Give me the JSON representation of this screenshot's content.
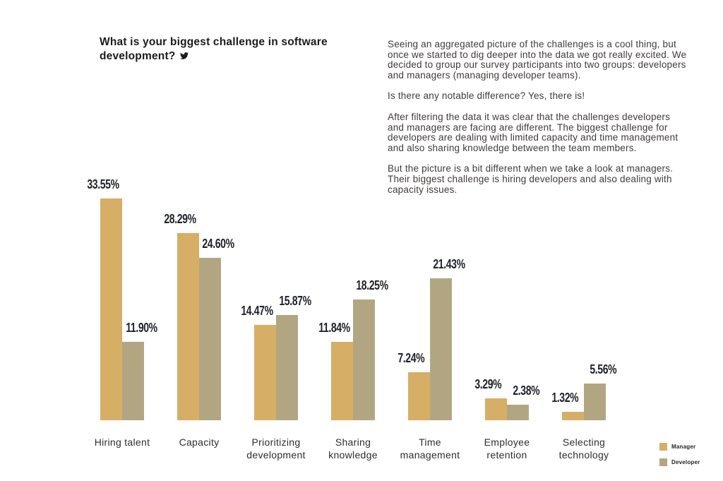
{
  "header": {
    "title": "What is your biggest challenge in software development?",
    "icon": "twitter-icon"
  },
  "article": {
    "paragraphs": [
      "Seeing an aggregated picture of the challenges is a cool thing, but once we started to dig deeper into the data we got really excited. We decided to group our survey participants into two groups: developers and managers (managing developer teams).",
      "Is there any notable difference? Yes, there is!",
      "After filtering the data it was clear that the challenges developers and managers are facing are different. The biggest challenge for developers are dealing with limited capacity and time management and also sharing knowledge between the team members.",
      "But the picture is a bit different when we take a look at managers. Their biggest challenge is hiring developers and also dealing with capacity issues."
    ]
  },
  "chart_data": {
    "type": "bar",
    "title": "What is your biggest challenge in software development?",
    "categories": [
      "Hiring talent",
      "Capacity",
      "Prioritizing development",
      "Sharing knowledge",
      "Time management",
      "Employee retention",
      "Selecting technology"
    ],
    "series": [
      {
        "name": "Manager",
        "color": "#D6AE66",
        "values": [
          33.55,
          28.29,
          14.47,
          11.84,
          7.24,
          3.29,
          1.32
        ]
      },
      {
        "name": "Developer",
        "color": "#B2A682",
        "values": [
          11.9,
          24.6,
          15.87,
          18.25,
          21.43,
          2.38,
          5.56
        ]
      }
    ],
    "value_label_format": "two-decimal-percent",
    "data_labels": true,
    "xlabel": "",
    "ylabel": "",
    "ylim": [
      0,
      35
    ],
    "grid": false,
    "axis_lines": false,
    "legend_position": "bottom-right"
  }
}
